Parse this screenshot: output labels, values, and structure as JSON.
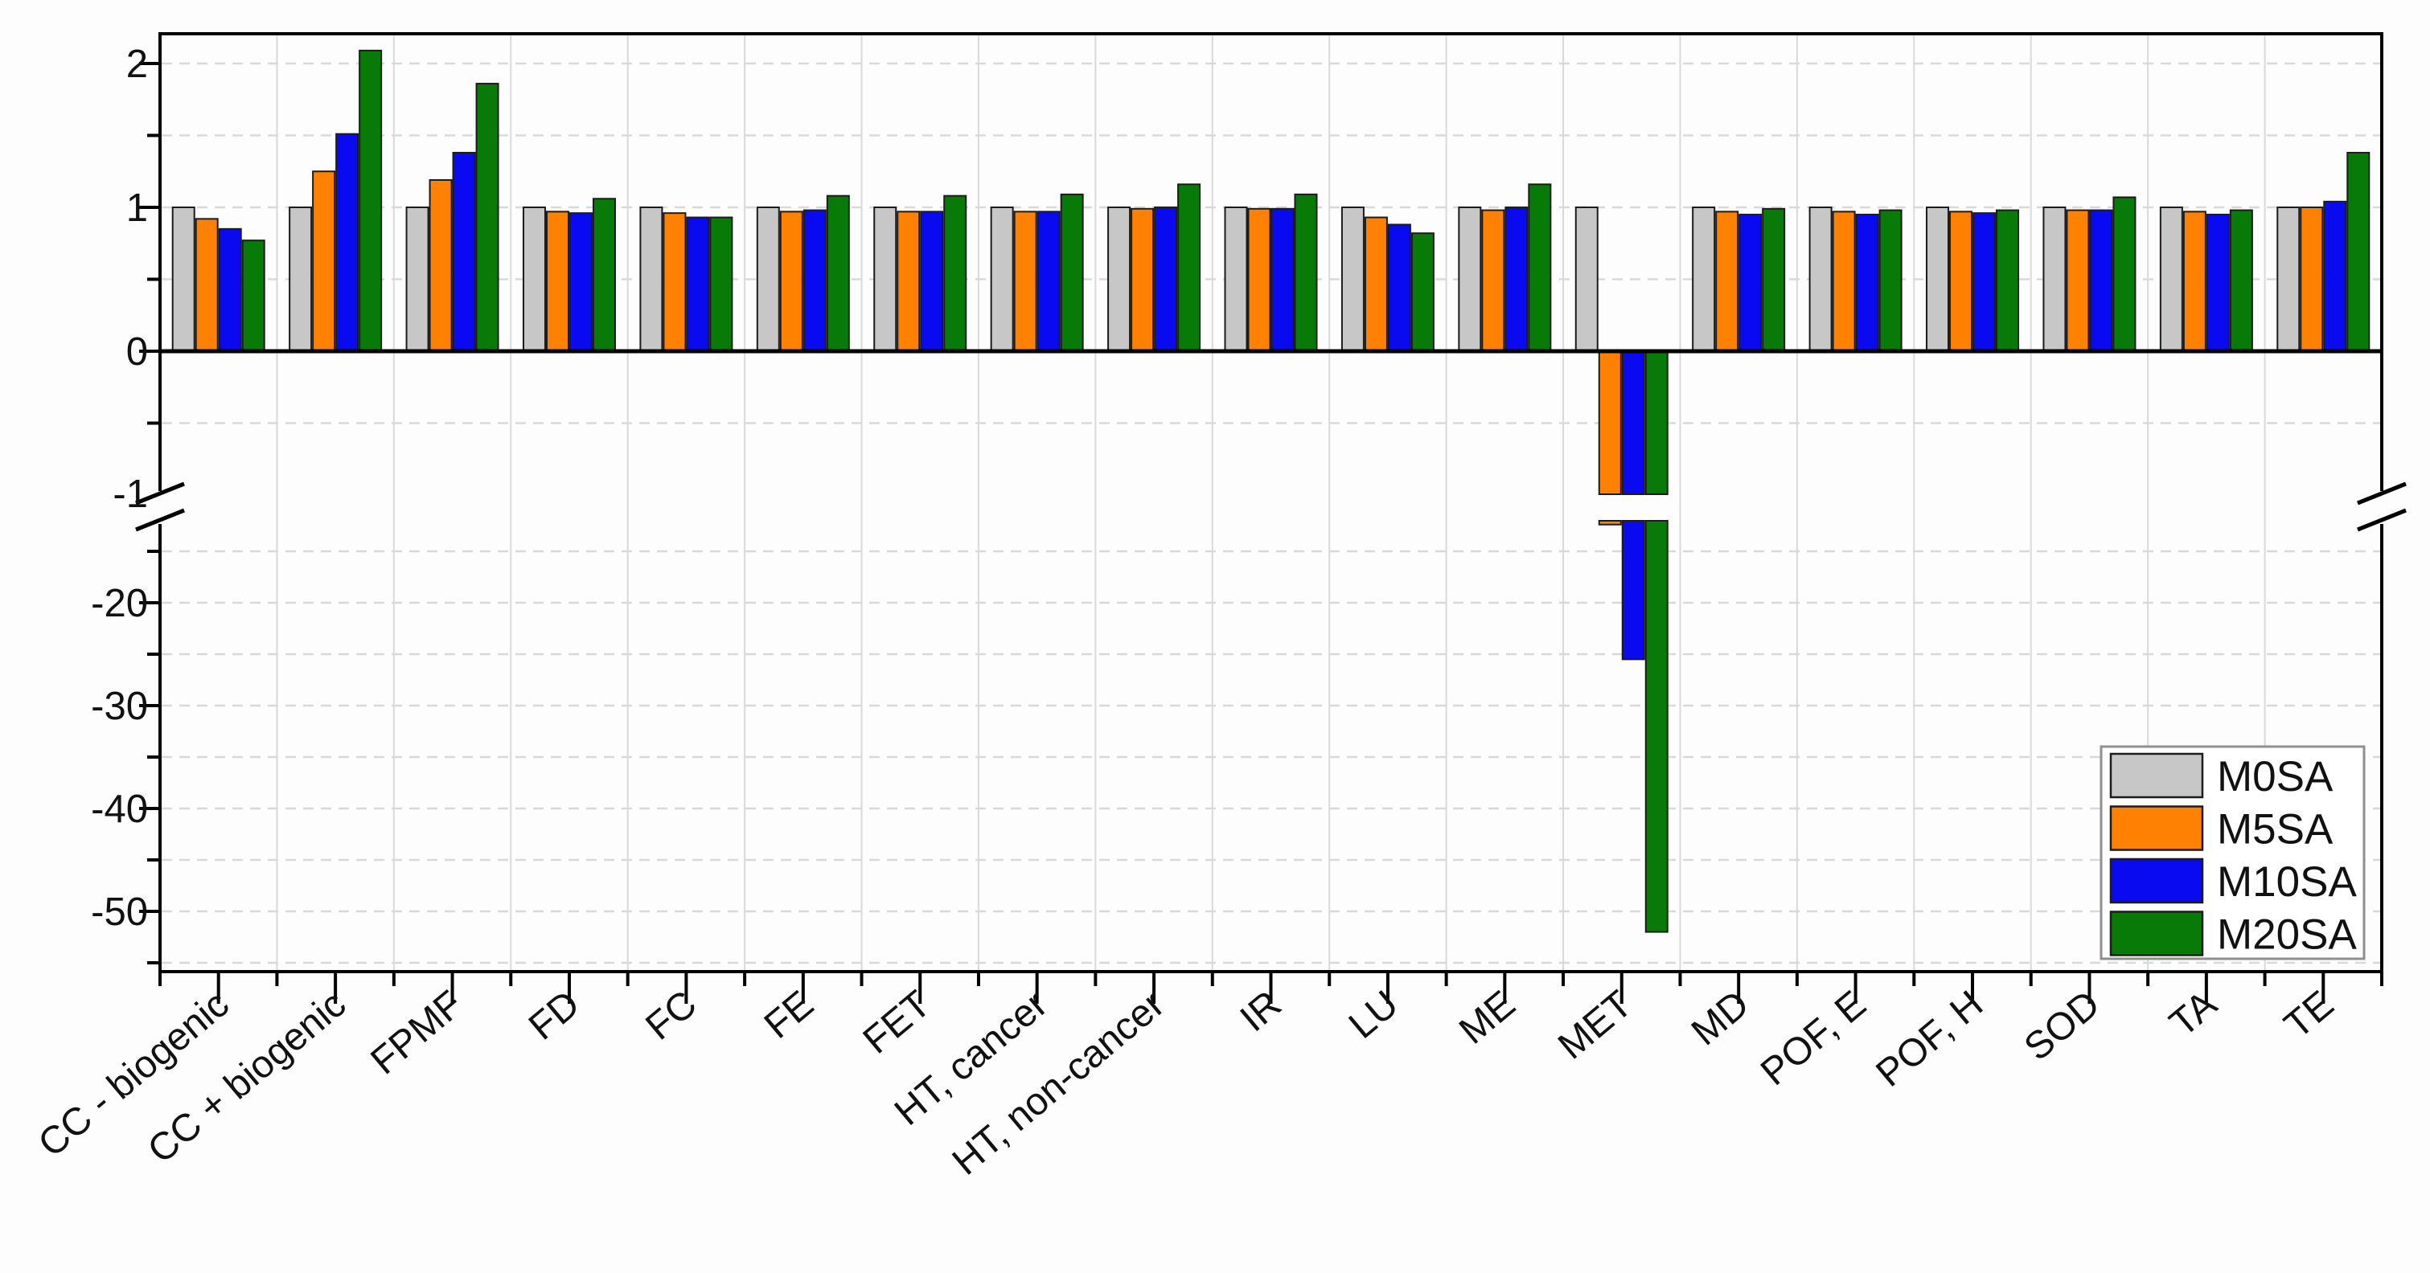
{
  "figure": {
    "title": "",
    "description": "Grouped bar chart with broken y-axis comparing four mixture scenarios across 19 impact categories; all values normalized to M0SA = 1."
  },
  "chart_data": {
    "type": "bar",
    "title": "",
    "xlabel": "",
    "ylabel": "",
    "grid": {
      "horizontal": "dashed",
      "vertical": "solid-category-separators"
    },
    "categories": [
      "CC - biogenic",
      "CC + biogenic",
      "FPMF",
      "FD",
      "FC",
      "FE",
      "FET",
      "HT, cancer",
      "HT, non-cancer",
      "IR",
      "LU",
      "ME",
      "MET",
      "MD",
      "POF, E",
      "POF, H",
      "SOD",
      "TA",
      "TE"
    ],
    "series": [
      {
        "name": "M0SA",
        "color": "#c7c7c7",
        "values": [
          1.0,
          1.0,
          1.0,
          1.0,
          1.0,
          1.0,
          1.0,
          1.0,
          1.0,
          1.0,
          1.0,
          1.0,
          1.0,
          1.0,
          1.0,
          1.0,
          1.0,
          1.0,
          1.0
        ]
      },
      {
        "name": "M5SA",
        "color": "#ff8103",
        "values": [
          0.92,
          1.25,
          1.19,
          0.97,
          0.96,
          0.97,
          0.97,
          0.97,
          0.99,
          0.99,
          0.93,
          0.98,
          -12.4,
          0.97,
          0.97,
          0.97,
          0.98,
          0.97,
          1.0
        ]
      },
      {
        "name": "M10SA",
        "color": "#0a0af0",
        "values": [
          0.85,
          1.51,
          1.38,
          0.96,
          0.93,
          0.98,
          0.97,
          0.97,
          1.0,
          0.99,
          0.88,
          1.0,
          -25.5,
          0.95,
          0.95,
          0.96,
          0.98,
          0.95,
          1.04
        ]
      },
      {
        "name": "M20SA",
        "color": "#077a07",
        "values": [
          0.77,
          2.09,
          1.86,
          1.06,
          0.93,
          1.08,
          1.08,
          1.09,
          1.16,
          1.09,
          0.82,
          1.16,
          -52.0,
          0.99,
          0.98,
          0.98,
          1.07,
          0.98,
          1.38
        ]
      }
    ],
    "y_axis": {
      "broken": true,
      "upper_range": [
        -1.05,
        2.21
      ],
      "lower_range": [
        -12.0,
        -55.9
      ],
      "upper_major_ticks": [
        0,
        1,
        2
      ],
      "upper_minor_ticks": [
        -0.5,
        0.5,
        1.5
      ],
      "break_label": "-1",
      "lower_major_ticks": [
        -20,
        -30,
        -40,
        -50
      ],
      "lower_minor_ticks": [
        -15,
        -25,
        -35,
        -45,
        -55
      ]
    },
    "legend": {
      "position": "inside-bottom-right",
      "entries": [
        "M0SA",
        "M5SA",
        "M10SA",
        "M20SA"
      ]
    }
  },
  "colors": {
    "bar_outline": "#1c1c1c",
    "frame": "#000000",
    "gridline": "#d9d9d9",
    "separator": "#d9d9d9",
    "legend_border": "#8f8f8f",
    "background": "#fdfdfd"
  }
}
